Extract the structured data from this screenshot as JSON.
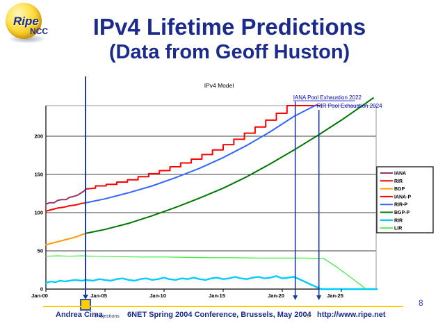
{
  "slide": {
    "logo": {
      "brand_top": "Ripe",
      "brand_bottom": "NCC"
    },
    "title_line1": "IPv4 Lifetime Predictions",
    "title_line2": "(Data from Geoff Huston)",
    "page_number": "8",
    "footer": {
      "author": "Andrea Cima",
      "conference": "6NET Spring 2004 Conference, Brussels, May 2004",
      "separator": ".",
      "url": "http://www.ripe.net"
    }
  },
  "colors": {
    "navy_text": "#1a2b8c",
    "annotation_blue": "#0000bb",
    "marker_blue": "#1c3d99",
    "footer_rule_gold": "#ffcc00",
    "grid_black": "#000000",
    "border_gray": "#9a9a9a"
  },
  "chart_data": {
    "type": "line",
    "title": "IPv4 Model",
    "xlabel": "Projections",
    "xlim": [
      2000,
      2028
    ],
    "ylim": [
      0,
      240
    ],
    "grid": true,
    "legend_position": "right",
    "y_ticks": [
      0,
      50,
      100,
      150,
      200
    ],
    "x_ticks": [
      {
        "label": "Jan-00",
        "year": 2000
      },
      {
        "label": "Jan-05",
        "year": 2005
      },
      {
        "label": "Jan-10",
        "year": 2010
      },
      {
        "label": "Jan-15",
        "year": 2015
      },
      {
        "label": "Jan-20",
        "year": 2020
      },
      {
        "label": "Jan-25",
        "year": 2025
      }
    ],
    "annotations": [
      {
        "text": "IANA Pool Exhaustion 2022",
        "year": 2021.1,
        "underline": true
      },
      {
        "text": "RIR Pool Exhaustion 2024",
        "year": 2023.1,
        "underline": false
      }
    ],
    "now_marker_year": 2003.35,
    "series": [
      {
        "name": "IANA",
        "color": "#993366",
        "width": 2,
        "points": [
          [
            2000,
            111
          ],
          [
            2000.3,
            113
          ],
          [
            2000.7,
            113
          ],
          [
            2001,
            116
          ],
          [
            2001.3,
            117
          ],
          [
            2001.7,
            117
          ],
          [
            2002,
            120
          ],
          [
            2002.3,
            121
          ],
          [
            2002.7,
            123
          ],
          [
            2003,
            126
          ],
          [
            2003.2,
            128
          ],
          [
            2003.4,
            131
          ]
        ]
      },
      {
        "name": "RIR",
        "color": "#ff0000",
        "width": 2,
        "points": [
          [
            2000,
            102
          ],
          [
            2000.5,
            104
          ],
          [
            2001,
            106
          ],
          [
            2001.5,
            107
          ],
          [
            2002,
            109
          ],
          [
            2002.5,
            110
          ],
          [
            2003,
            112
          ],
          [
            2003.4,
            113
          ]
        ]
      },
      {
        "name": "BGP",
        "color": "#ff9900",
        "width": 2,
        "points": [
          [
            2000,
            58
          ],
          [
            2000.5,
            60
          ],
          [
            2001,
            62
          ],
          [
            2001.5,
            64
          ],
          [
            2002,
            66
          ],
          [
            2002.5,
            68
          ],
          [
            2003,
            71
          ],
          [
            2003.4,
            73
          ]
        ]
      },
      {
        "name": "IANA-P",
        "color": "#ff0000",
        "width": 2,
        "points": [
          [
            2003.4,
            131
          ],
          [
            2004.2,
            132
          ],
          [
            2004.2,
            135
          ],
          [
            2005.1,
            135
          ],
          [
            2005.1,
            137
          ],
          [
            2006,
            137
          ],
          [
            2006,
            140
          ],
          [
            2006.9,
            140
          ],
          [
            2006.9,
            143
          ],
          [
            2007.8,
            143
          ],
          [
            2007.8,
            147
          ],
          [
            2008.7,
            147
          ],
          [
            2008.7,
            151
          ],
          [
            2009.6,
            151
          ],
          [
            2009.6,
            155
          ],
          [
            2010.5,
            155
          ],
          [
            2010.5,
            160
          ],
          [
            2011.4,
            160
          ],
          [
            2011.4,
            165
          ],
          [
            2012.3,
            165
          ],
          [
            2012.3,
            170
          ],
          [
            2013.2,
            170
          ],
          [
            2013.2,
            176
          ],
          [
            2014.1,
            176
          ],
          [
            2014.1,
            182
          ],
          [
            2015,
            182
          ],
          [
            2015,
            189
          ],
          [
            2015.9,
            189
          ],
          [
            2015.9,
            196
          ],
          [
            2016.8,
            196
          ],
          [
            2016.8,
            204
          ],
          [
            2017.7,
            204
          ],
          [
            2017.7,
            212
          ],
          [
            2018.6,
            212
          ],
          [
            2018.6,
            221
          ],
          [
            2019.5,
            221
          ],
          [
            2019.5,
            230
          ],
          [
            2020.4,
            230
          ],
          [
            2020.4,
            240
          ],
          [
            2021,
            240
          ],
          [
            2023.2,
            240
          ]
        ]
      },
      {
        "name": "RIR-P",
        "color": "#3366ff",
        "width": 2,
        "points": [
          [
            2003.4,
            113
          ],
          [
            2005,
            118
          ],
          [
            2007,
            126
          ],
          [
            2009,
            135
          ],
          [
            2011,
            146
          ],
          [
            2013,
            158
          ],
          [
            2015,
            172
          ],
          [
            2017,
            188
          ],
          [
            2019,
            206
          ],
          [
            2021,
            226
          ],
          [
            2022.9,
            241
          ]
        ]
      },
      {
        "name": "BGP-P",
        "color": "#007700",
        "width": 2,
        "points": [
          [
            2003.4,
            73
          ],
          [
            2005,
            78
          ],
          [
            2007,
            86
          ],
          [
            2009,
            96
          ],
          [
            2011,
            107
          ],
          [
            2013,
            119
          ],
          [
            2015,
            132
          ],
          [
            2017,
            147
          ],
          [
            2019,
            164
          ],
          [
            2021,
            182
          ],
          [
            2023,
            201
          ],
          [
            2025,
            221
          ],
          [
            2026.5,
            237
          ],
          [
            2027.7,
            250
          ]
        ]
      },
      {
        "name": "RIR",
        "color": "#00ccff",
        "width": 2.4,
        "points": [
          [
            2000,
            8
          ],
          [
            2000.4,
            10
          ],
          [
            2000.8,
            9
          ],
          [
            2001.2,
            11
          ],
          [
            2001.6,
            10
          ],
          [
            2002,
            11
          ],
          [
            2002.5,
            12
          ],
          [
            2003,
            11
          ],
          [
            2003.4,
            12
          ],
          [
            2004,
            11
          ],
          [
            2004.5,
            13
          ],
          [
            2005,
            12
          ],
          [
            2005.5,
            11
          ],
          [
            2006,
            13
          ],
          [
            2006.5,
            14
          ],
          [
            2007,
            12
          ],
          [
            2007.5,
            11
          ],
          [
            2008,
            13
          ],
          [
            2008.5,
            14
          ],
          [
            2009,
            12
          ],
          [
            2009.5,
            13
          ],
          [
            2010,
            15
          ],
          [
            2010.4,
            13
          ],
          [
            2011,
            12
          ],
          [
            2011.5,
            14
          ],
          [
            2012,
            13
          ],
          [
            2012.5,
            15
          ],
          [
            2013,
            13
          ],
          [
            2013.5,
            12
          ],
          [
            2014,
            14
          ],
          [
            2014.5,
            15
          ],
          [
            2015,
            13
          ],
          [
            2015.5,
            14
          ],
          [
            2016,
            16
          ],
          [
            2016.5,
            14
          ],
          [
            2017,
            13
          ],
          [
            2017.5,
            15
          ],
          [
            2018,
            16
          ],
          [
            2018.5,
            14
          ],
          [
            2019,
            15
          ],
          [
            2019.5,
            17
          ],
          [
            2020,
            14
          ],
          [
            2020.5,
            15
          ],
          [
            2021,
            16
          ],
          [
            2021.3,
            14
          ],
          [
            2022,
            9
          ],
          [
            2022.7,
            4
          ],
          [
            2023.3,
            0
          ],
          [
            2028,
            0
          ]
        ]
      },
      {
        "name": "LIR",
        "color": "#33ee33",
        "width": 1.2,
        "points": [
          [
            2000,
            43
          ],
          [
            2001,
            43.5
          ],
          [
            2002,
            43
          ],
          [
            2003,
            43.5
          ],
          [
            2004,
            43
          ],
          [
            2006,
            42.5
          ],
          [
            2008,
            42
          ],
          [
            2010,
            42
          ],
          [
            2012,
            41.5
          ],
          [
            2014,
            41
          ],
          [
            2016,
            41
          ],
          [
            2018,
            40.5
          ],
          [
            2020,
            40.5
          ],
          [
            2022,
            40.5
          ],
          [
            2023.5,
            40
          ],
          [
            2024.5,
            30
          ],
          [
            2026,
            13
          ],
          [
            2027.1,
            0
          ]
        ]
      }
    ]
  }
}
